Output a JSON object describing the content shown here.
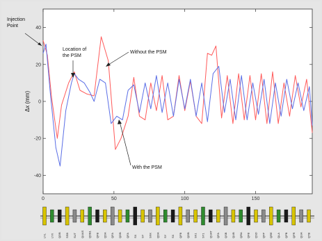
{
  "chart_data": {
    "type": "line",
    "title": "",
    "xlabel": "",
    "ylabel": "Δx (mm)",
    "xlim": [
      0,
      190
    ],
    "ylim": [
      -50,
      50
    ],
    "xticks": [
      0,
      50,
      100,
      150
    ],
    "yticks": [
      -40,
      -20,
      0,
      20,
      40
    ],
    "grid": false,
    "series": [
      {
        "name": "Without the PSM",
        "color": "#ff5a5a",
        "x": [
          0,
          3,
          6,
          10,
          13,
          18,
          22,
          26,
          31,
          36,
          41,
          46,
          51,
          55,
          60,
          64,
          68,
          72,
          76,
          80,
          84,
          88,
          92,
          96,
          100,
          104,
          108,
          112,
          116,
          119,
          122,
          126,
          130,
          134,
          138,
          142,
          146,
          150,
          154,
          158,
          162,
          166,
          170,
          174,
          178,
          182,
          186,
          190
        ],
        "y": [
          33,
          25,
          2,
          -20,
          -2,
          10,
          16,
          6,
          4,
          3,
          35,
          22,
          -26,
          -20,
          -8,
          13,
          -8,
          -10,
          10,
          -5,
          14,
          -10,
          -8,
          14,
          -5,
          11,
          -8,
          -12,
          26,
          25,
          30,
          -9,
          14,
          -12,
          15,
          -10,
          14,
          -10,
          15,
          -12,
          16,
          -12,
          10,
          -8,
          14,
          -3,
          12,
          -17
        ]
      },
      {
        "name": "With the PSM",
        "color": "#5a6ee6",
        "x": [
          0,
          2,
          5,
          9,
          12,
          16,
          20,
          22,
          25,
          29,
          33,
          36,
          40,
          44,
          48,
          52,
          56,
          60,
          64,
          68,
          72,
          76,
          80,
          84,
          88,
          92,
          96,
          100,
          104,
          108,
          112,
          116,
          120,
          124,
          128,
          132,
          136,
          140,
          144,
          148,
          152,
          156,
          160,
          164,
          168,
          172,
          176,
          180,
          184,
          188,
          190
        ],
        "y": [
          26,
          31,
          5,
          -25,
          -35,
          -5,
          10,
          15,
          12,
          10,
          5,
          0,
          12,
          10,
          -12,
          -8,
          -10,
          6,
          9,
          -6,
          10,
          -4,
          14,
          -6,
          10,
          -8,
          12,
          -4,
          12,
          -8,
          10,
          -11,
          15,
          19,
          -6,
          12,
          -10,
          14,
          -10,
          10,
          -7,
          12,
          -12,
          10,
          -8,
          12,
          -4,
          10,
          -5,
          8,
          -13
        ]
      }
    ],
    "annotations": [
      {
        "text_lines": [
          "Injection",
          "Point"
        ]
      },
      {
        "text_lines": [
          "Location of",
          "the PSM"
        ]
      },
      {
        "text": "Without the PSM"
      },
      {
        "text": "With the PSM"
      }
    ],
    "lattice_labels": [
      "LYL",
      "LYX",
      "QDB",
      "SSB",
      "SUT",
      "QUAS",
      "QDB1",
      "QFB",
      "QDA",
      "QFA",
      "QDB",
      "QFA",
      "SX",
      "SY",
      "SXK",
      "QDA",
      "SY",
      "SX",
      "QFB",
      "QDB",
      "SX1",
      "SY1",
      "QUAT",
      "QFA",
      "QSB",
      "QUB",
      "QRA",
      "QFB",
      "QSD",
      "QFP",
      "QRE",
      "QLA",
      "QPB",
      "QFR",
      "QUA",
      "QTB"
    ]
  }
}
